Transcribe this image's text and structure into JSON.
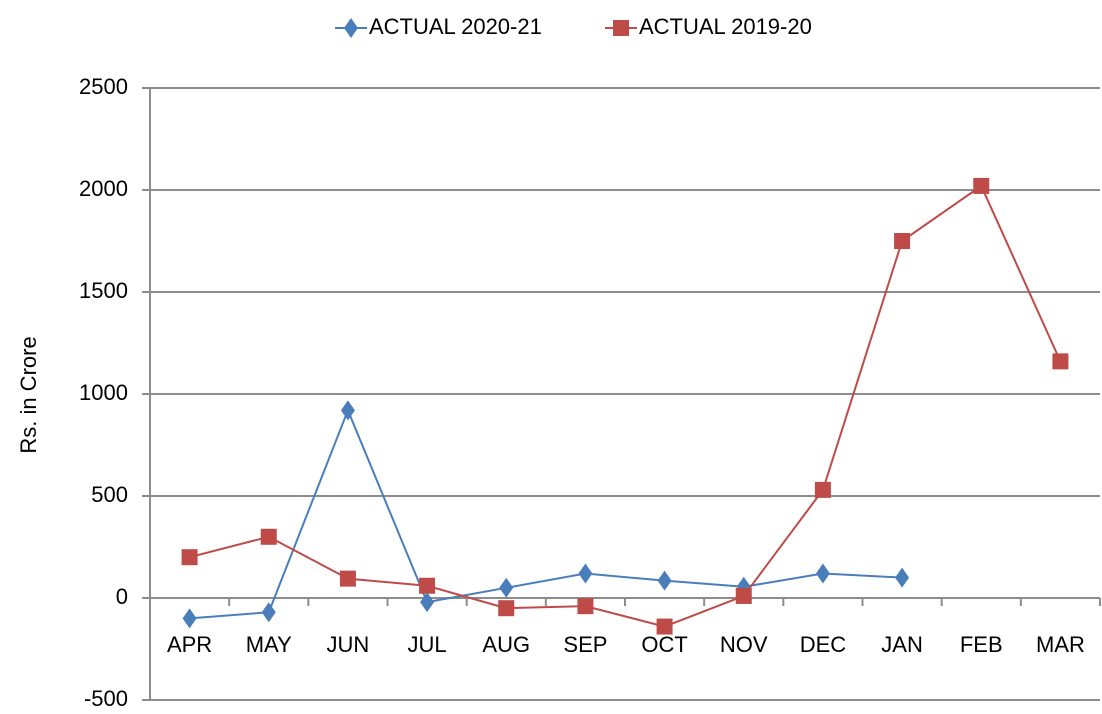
{
  "chart_data": {
    "type": "line",
    "y_label": "Rs. in Crore",
    "categories": [
      "APR",
      "MAY",
      "JUN",
      "JUL",
      "AUG",
      "SEP",
      "OCT",
      "NOV",
      "DEC",
      "JAN",
      "FEB",
      "MAR"
    ],
    "series": [
      {
        "name": "ACTUAL 2020-21",
        "color": "#4a7ebb",
        "marker": "diamond",
        "values": [
          -100,
          -70,
          920,
          -20,
          50,
          120,
          85,
          55,
          120,
          100,
          null,
          null
        ]
      },
      {
        "name": "ACTUAL 2019-20",
        "color": "#be4b48",
        "marker": "square",
        "values": [
          200,
          300,
          95,
          60,
          -50,
          -40,
          -140,
          10,
          530,
          1750,
          2020,
          1160
        ]
      }
    ],
    "ylim": [
      -500,
      2500
    ],
    "yticks": [
      -500,
      0,
      500,
      1000,
      1500,
      2000,
      2500
    ],
    "grid": true,
    "legend": "top"
  }
}
